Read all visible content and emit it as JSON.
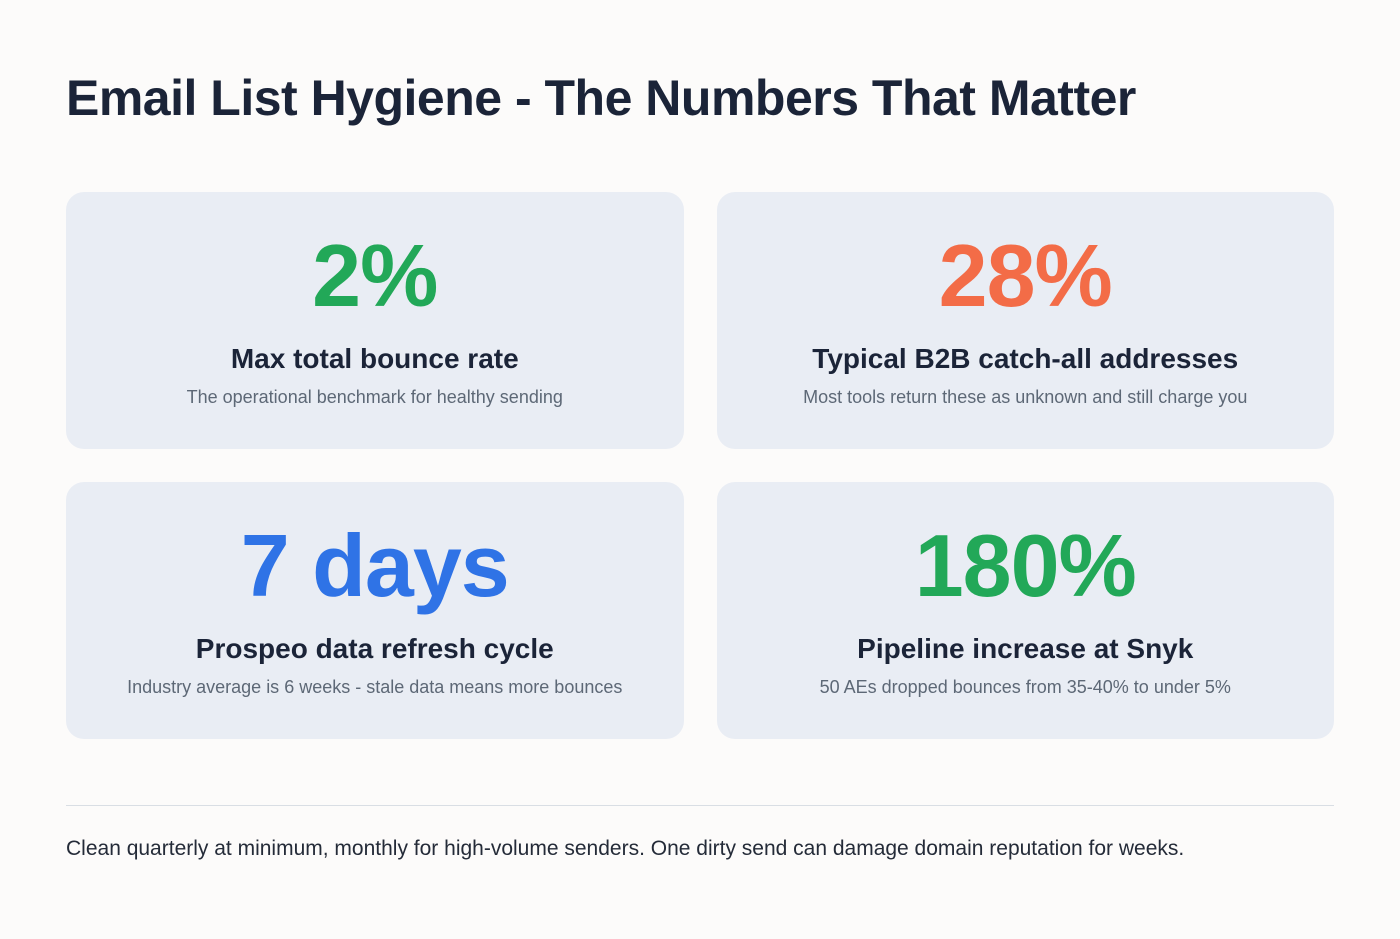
{
  "page": {
    "title": "Email List Hygiene - The Numbers That Matter",
    "footer_note": "Clean quarterly at minimum, monthly for high-volume senders. One dirty send can damage domain reputation for weeks."
  },
  "colors": {
    "page_background": "#fcfbfa",
    "card_background": "#e9edf4",
    "heading_navy": "#1b2438",
    "subtitle_gray": "#5d6876",
    "divider_gray": "#d9dee4",
    "stat_green": "#22a858",
    "stat_orange": "#f36c47",
    "stat_blue": "#2f73e6"
  },
  "cards": [
    {
      "value": "2%",
      "value_color": "#22a858",
      "title": "Max total bounce rate",
      "subtitle": "The operational benchmark for healthy sending"
    },
    {
      "value": "28%",
      "value_color": "#f36c47",
      "title": "Typical B2B catch-all addresses",
      "subtitle": "Most tools return these as unknown and still charge you"
    },
    {
      "value": "7 days",
      "value_color": "#2f73e6",
      "title": "Prospeo data refresh cycle",
      "subtitle": "Industry average is 6 weeks - stale data means more bounces"
    },
    {
      "value": "180%",
      "value_color": "#22a858",
      "title": "Pipeline increase at Snyk",
      "subtitle": "50 AEs dropped bounces from 35-40% to under 5%"
    }
  ]
}
